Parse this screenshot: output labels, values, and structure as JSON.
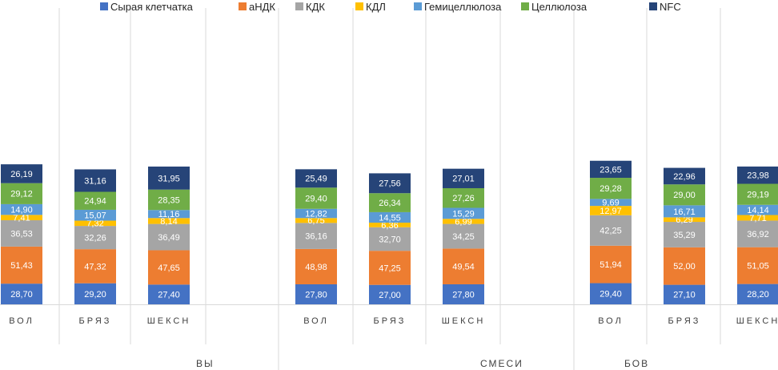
{
  "chart_data": {
    "type": "bar",
    "stacked": true,
    "legend_position": "top",
    "series": [
      {
        "name": "Сырая клетчатка",
        "color": "#4472C4",
        "text_color": "#ffffff"
      },
      {
        "name": "аНДК",
        "color": "#ED7D31",
        "text_color": "#ffffff"
      },
      {
        "name": "КДК",
        "color": "#A5A5A5",
        "text_color": "#ffffff"
      },
      {
        "name": "КДЛ",
        "color": "#FFC000",
        "text_color": "#ffffff"
      },
      {
        "name": "Гемицеллюлоза",
        "color": "#5B9BD5",
        "text_color": "#ffffff"
      },
      {
        "name": "Целлюлоза",
        "color": "#70AD47",
        "text_color": "#ffffff"
      },
      {
        "name": "NFC",
        "color": "#264478",
        "text_color": "#ffffff"
      }
    ],
    "bars": [
      {
        "category": "ВОЛ",
        "values": [
          "28,70",
          "51,43",
          "36,53",
          "7,41",
          "14,90",
          "29,12",
          "26,19"
        ]
      },
      {
        "category": "БРЯЗ",
        "values": [
          "29,20",
          "47,32",
          "32,26",
          "7,32",
          "15,07",
          "24,94",
          "31,16"
        ]
      },
      {
        "category": "ШЕКСН",
        "values": [
          "27,40",
          "47,65",
          "36,49",
          "8,14",
          "11,16",
          "28,35",
          "31,95"
        ]
      },
      {
        "category": "",
        "values": null
      },
      {
        "category": "ВОЛ",
        "values": [
          "27,80",
          "48,98",
          "36,16",
          "6,75",
          "12,82",
          "29,40",
          "25,49"
        ]
      },
      {
        "category": "БРЯЗ",
        "values": [
          "27,00",
          "47,25",
          "32,70",
          "6,36",
          "14,55",
          "26,34",
          "27,56"
        ]
      },
      {
        "category": "ШЕКСН",
        "values": [
          "27,80",
          "49,54",
          "34,25",
          "6,99",
          "15,29",
          "27,26",
          "27,01"
        ]
      },
      {
        "category": "",
        "values": null
      },
      {
        "category": "ВОЛ",
        "values": [
          "29,40",
          "51,94",
          "42,25",
          "12,97",
          "9,69",
          "29,28",
          "23,65"
        ]
      },
      {
        "category": "БРЯЗ",
        "values": [
          "27,10",
          "52,00",
          "35,29",
          "6,29",
          "16,71",
          "29,00",
          "22,96"
        ]
      },
      {
        "category": "ШЕКСН",
        "values": [
          "28,20",
          "51,05",
          "36,92",
          "7,71",
          "14,14",
          "29,19",
          "23,98"
        ]
      }
    ],
    "groups": [
      {
        "label": "ВЫ"
      },
      {
        "label": "СМЕСИ"
      },
      {
        "label": "БОВ"
      }
    ]
  }
}
